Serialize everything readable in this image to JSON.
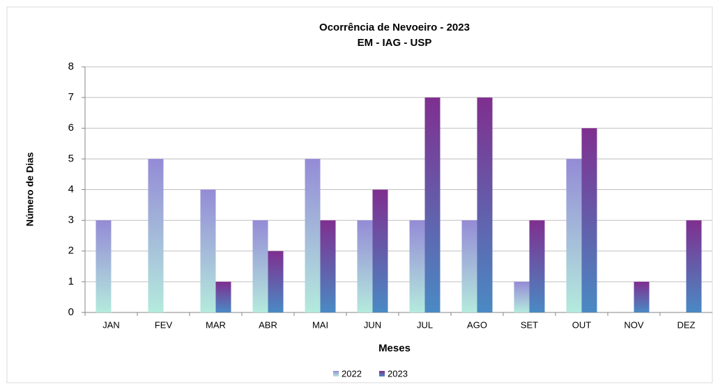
{
  "chart_data": {
    "type": "bar",
    "title": "Ocorrência de Nevoeiro - 2023",
    "subtitle": "EM - IAG - USP",
    "x_label": "Meses",
    "y_label": "Número de Dias",
    "categories": [
      "JAN",
      "FEV",
      "MAR",
      "ABR",
      "MAI",
      "JUN",
      "JUL",
      "AGO",
      "SET",
      "OUT",
      "NOV",
      "DEZ"
    ],
    "series": [
      {
        "name": "2022",
        "color": "#948bd6",
        "color_bottom": "#b4eadd",
        "values": [
          3,
          5,
          4,
          3,
          5,
          3,
          3,
          3,
          1,
          5,
          0,
          0
        ]
      },
      {
        "name": "2023",
        "color": "#7f2f8f",
        "color_bottom": "#4a8ac4",
        "values": [
          0,
          0,
          1,
          2,
          3,
          4,
          7,
          7,
          3,
          6,
          1,
          3
        ]
      }
    ],
    "ylim": [
      0,
      8
    ],
    "yticks": [
      0,
      1,
      2,
      3,
      4,
      5,
      6,
      7,
      8
    ],
    "grid": true,
    "legend": "bottom"
  }
}
